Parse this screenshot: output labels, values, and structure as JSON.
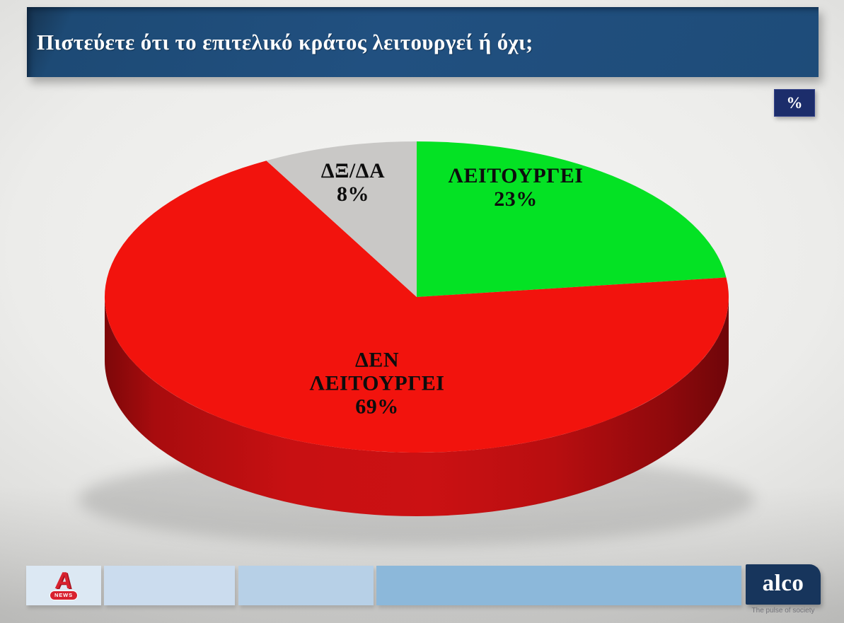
{
  "header": {
    "title": "Πιστεύετε ότι το επιτελικό κράτος λειτουργεί ή όχι;"
  },
  "badge": {
    "label": "%"
  },
  "chart_data": {
    "type": "pie",
    "style": "3d",
    "title": "Πιστεύετε ότι το επιτελικό κράτος λειτουργεί ή όχι;",
    "unit": "%",
    "start_angle_deg": 0,
    "direction": "clockwise",
    "slices": [
      {
        "label": "ΛΕΙΤΟΥΡΓΕΙ",
        "value": 23,
        "value_label": "23%",
        "color": "#04e224"
      },
      {
        "label": "ΔΕΝ ΛΕΙΤΟΥΡΓΕΙ",
        "value": 69,
        "value_label": "69%",
        "color": "#f2130d"
      },
      {
        "label": "ΔΞ/ΔΑ",
        "value": 8,
        "value_label": "8%",
        "color": "#c9c8c6"
      }
    ],
    "depth_side_color_dark": "#8a090b",
    "depth_side_color_mid": "#c91113",
    "legend_position": "on-slices",
    "grid": false
  },
  "footer": {
    "alpha_logo": {
      "letter": "A",
      "badge_label": "NEWS"
    },
    "alco": {
      "name": "alco",
      "tagline": "The pulse of society"
    }
  },
  "theme": {
    "header_bg": "#1f4e7c",
    "badge_bg": "#1c2d6b",
    "alco_bg": "#17355c",
    "footer_bar_colors": [
      "#dce8f3",
      "#cbdcee",
      "#b7d0e7",
      "#8cb8da"
    ]
  }
}
